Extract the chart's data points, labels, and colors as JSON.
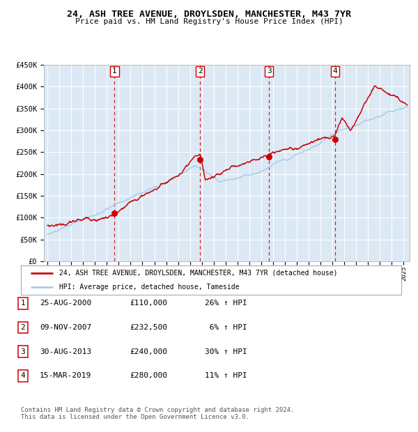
{
  "title": "24, ASH TREE AVENUE, DROYLSDEN, MANCHESTER, M43 7YR",
  "subtitle": "Price paid vs. HM Land Registry's House Price Index (HPI)",
  "plot_bg_color": "#dce9f5",
  "ylim": [
    0,
    450000
  ],
  "yticks": [
    0,
    50000,
    100000,
    150000,
    200000,
    250000,
    300000,
    350000,
    400000,
    450000
  ],
  "ytick_labels": [
    "£0",
    "£50K",
    "£100K",
    "£150K",
    "£200K",
    "£250K",
    "£300K",
    "£350K",
    "£400K",
    "£450K"
  ],
  "sale_dates": [
    "2000-08-25",
    "2007-11-09",
    "2013-08-30",
    "2019-03-15"
  ],
  "sale_prices": [
    110000,
    232500,
    240000,
    280000
  ],
  "hpi_color": "#aacce8",
  "price_color": "#cc0000",
  "marker_color": "#cc0000",
  "dashed_color": "#cc0000",
  "legend_line1": "24, ASH TREE AVENUE, DROYLSDEN, MANCHESTER, M43 7YR (detached house)",
  "legend_line2": "HPI: Average price, detached house, Tameside",
  "table_entries": [
    [
      "1",
      "25-AUG-2000",
      "£110,000",
      "26% ↑ HPI"
    ],
    [
      "2",
      "09-NOV-2007",
      "£232,500",
      " 6% ↑ HPI"
    ],
    [
      "3",
      "30-AUG-2013",
      "£240,000",
      "30% ↑ HPI"
    ],
    [
      "4",
      "15-MAR-2019",
      "£280,000",
      "11% ↑ HPI"
    ]
  ],
  "footer": "Contains HM Land Registry data © Crown copyright and database right 2024.\nThis data is licensed under the Open Government Licence v3.0.",
  "xlim_start": 1994.7,
  "xlim_end": 2025.5
}
